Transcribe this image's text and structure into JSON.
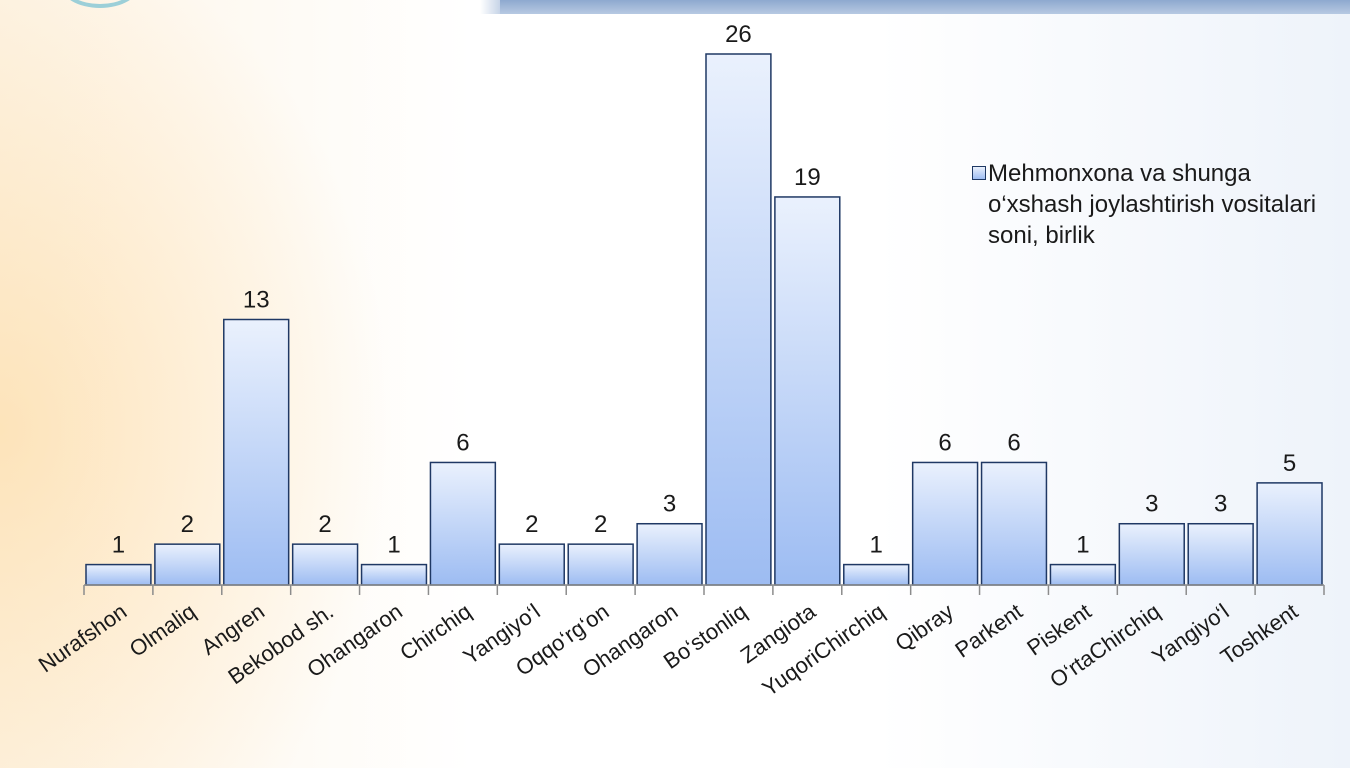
{
  "chart_data": {
    "type": "bar",
    "categories": [
      "Nurafshon",
      "Olmaliq",
      "Angren",
      "Bekobod sh.",
      "Ohangaron",
      "Chirchiq",
      "Yangiyo‘l",
      "Oqqo‘rg‘on",
      "Ohangaron",
      "Bo‘stonliq",
      "Zangiota",
      "YuqoriChirchiq",
      "Qibray",
      "Parkent",
      "Piskent",
      "O‘rtaChirchiq",
      "Yangiyo‘l",
      "Toshkent"
    ],
    "series": [
      {
        "name": "Mehmonxona va shunga o‘xshash joylashtirish vositalari soni, birlik",
        "values": [
          1,
          2,
          13,
          2,
          1,
          6,
          2,
          2,
          3,
          26,
          19,
          1,
          6,
          6,
          1,
          3,
          3,
          5
        ]
      }
    ],
    "ylim": [
      0,
      26
    ],
    "grid": false,
    "data_labels": true,
    "legend_position": "right",
    "colors": {
      "bar_top": "#eaf1fd",
      "bar_bottom": "#9dbcf2",
      "bar_border": "#1f3864",
      "axis": "#8c8c8c"
    }
  }
}
